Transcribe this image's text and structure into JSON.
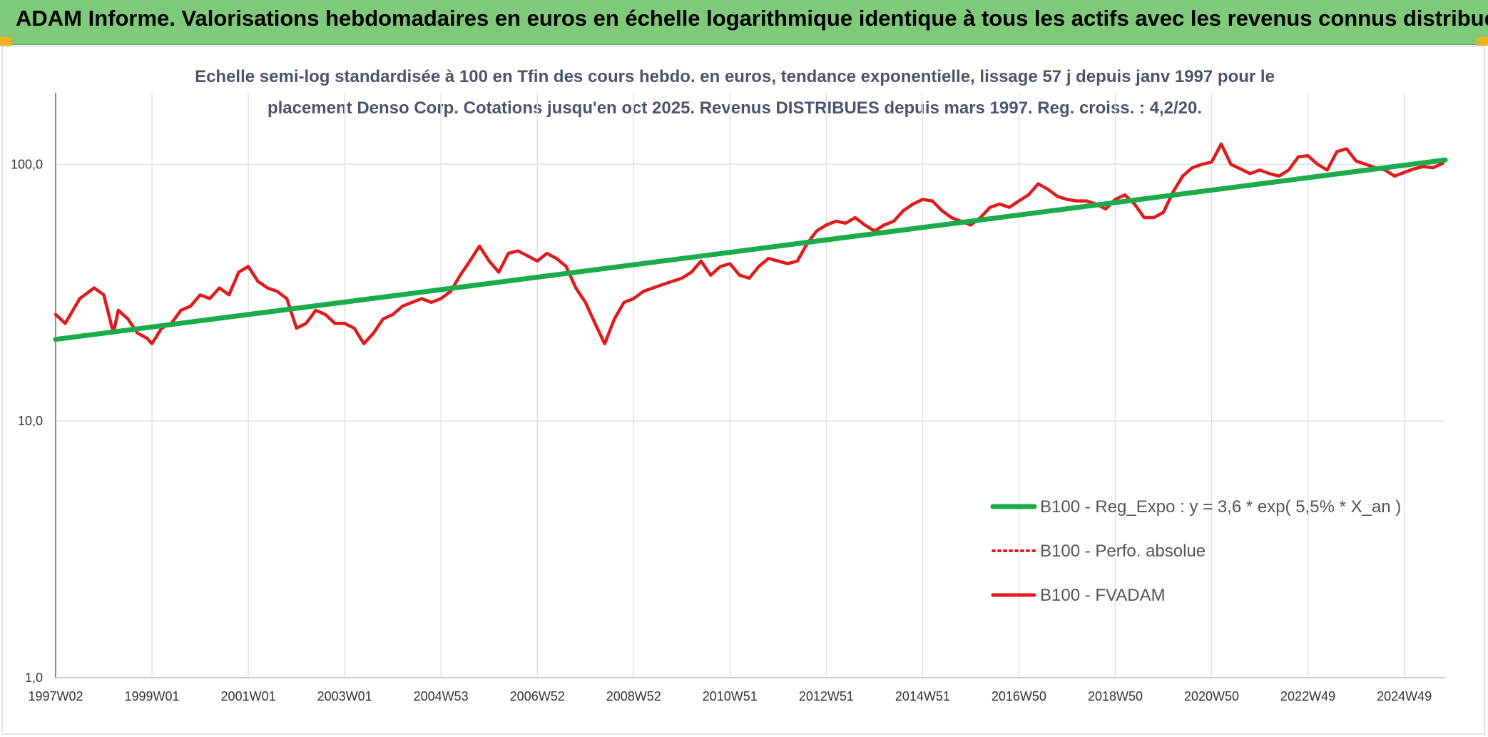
{
  "banner": {
    "title": "ADAM Informe. Valorisations hebdomadaires en euros en échelle logarithmique identique à tous les actifs avec les revenus connus distribués"
  },
  "colors": {
    "banner": "#7fc97a",
    "accent_corner": "#f2b21b",
    "trend": "#1aab4b",
    "perf": "#e01b1b",
    "grid": "#dde3ea",
    "title_text": "#4a5470"
  },
  "chart_data": {
    "type": "line",
    "title_line1": "Echelle semi-log standardisée à 100 en Tfin des cours hebdo. en euros, tendance exponentielle, lissage 57 j depuis janv 1997 pour le",
    "title_line2": "placement Denso Corp. Cotations jusqu'en oct 2025. Revenus DISTRIBUES depuis mars 1997. Reg. croiss. : 4,2/20.",
    "y_scale": "log",
    "ylim": [
      1,
      190
    ],
    "xlim": [
      1997.0,
      2025.85
    ],
    "grid": true,
    "legend_position": "right",
    "y_ticks": [
      {
        "value": 1,
        "label": "1,0"
      },
      {
        "value": 10,
        "label": "10,0"
      },
      {
        "value": 100,
        "label": "100,0"
      }
    ],
    "x_ticks": [
      {
        "value": 1997.0,
        "label": "1997W02"
      },
      {
        "value": 1999.0,
        "label": "1999W01"
      },
      {
        "value": 2001.0,
        "label": "2001W01"
      },
      {
        "value": 2003.0,
        "label": "2003W01"
      },
      {
        "value": 2005.0,
        "label": "2004W53"
      },
      {
        "value": 2007.0,
        "label": "2006W52"
      },
      {
        "value": 2009.0,
        "label": "2008W52"
      },
      {
        "value": 2011.0,
        "label": "2010W51"
      },
      {
        "value": 2013.0,
        "label": "2012W51"
      },
      {
        "value": 2015.0,
        "label": "2014W51"
      },
      {
        "value": 2017.0,
        "label": "2016W50"
      },
      {
        "value": 2019.0,
        "label": "2018W50"
      },
      {
        "value": 2021.0,
        "label": "2020W50"
      },
      {
        "value": 2023.0,
        "label": "2022W49"
      },
      {
        "value": 2025.0,
        "label": "2024W49"
      }
    ],
    "series": [
      {
        "name": "B100 - Reg_Expo : y = 3,6 * exp( 5,5% *  X_an )",
        "style": "solid-thick",
        "color": "#1aab4b",
        "x": [
          1997.0,
          2025.85
        ],
        "y": [
          20.8,
          104
        ]
      },
      {
        "name": "B100 - Perfo. absolue",
        "style": "dotted",
        "color": "#e01b1b",
        "x": [],
        "y": []
      },
      {
        "name": "B100 - FVADAM",
        "style": "solid",
        "color": "#e01b1b",
        "x": [
          1997.0,
          1997.2,
          1997.5,
          1997.8,
          1998.0,
          1998.2,
          1998.3,
          1998.5,
          1998.7,
          1998.9,
          1999.0,
          1999.2,
          1999.4,
          1999.6,
          1999.8,
          2000.0,
          2000.2,
          2000.4,
          2000.6,
          2000.8,
          2001.0,
          2001.2,
          2001.4,
          2001.6,
          2001.8,
          2002.0,
          2002.2,
          2002.4,
          2002.6,
          2002.8,
          2003.0,
          2003.2,
          2003.4,
          2003.6,
          2003.8,
          2004.0,
          2004.2,
          2004.4,
          2004.6,
          2004.8,
          2005.0,
          2005.2,
          2005.4,
          2005.6,
          2005.8,
          2006.0,
          2006.2,
          2006.4,
          2006.6,
          2006.8,
          2007.0,
          2007.2,
          2007.4,
          2007.6,
          2007.8,
          2008.0,
          2008.2,
          2008.4,
          2008.6,
          2008.8,
          2009.0,
          2009.2,
          2009.4,
          2009.6,
          2009.8,
          2010.0,
          2010.2,
          2010.4,
          2010.6,
          2010.8,
          2011.0,
          2011.2,
          2011.4,
          2011.6,
          2011.8,
          2012.0,
          2012.2,
          2012.4,
          2012.6,
          2012.8,
          2013.0,
          2013.2,
          2013.4,
          2013.6,
          2013.8,
          2014.0,
          2014.2,
          2014.4,
          2014.6,
          2014.8,
          2015.0,
          2015.2,
          2015.4,
          2015.6,
          2015.8,
          2016.0,
          2016.2,
          2016.4,
          2016.6,
          2016.8,
          2017.0,
          2017.2,
          2017.4,
          2017.6,
          2017.8,
          2018.0,
          2018.2,
          2018.4,
          2018.6,
          2018.8,
          2019.0,
          2019.2,
          2019.4,
          2019.6,
          2019.8,
          2020.0,
          2020.2,
          2020.4,
          2020.6,
          2020.8,
          2021.0,
          2021.2,
          2021.4,
          2021.6,
          2021.8,
          2022.0,
          2022.2,
          2022.4,
          2022.6,
          2022.8,
          2023.0,
          2023.2,
          2023.4,
          2023.6,
          2023.8,
          2024.0,
          2024.2,
          2024.4,
          2024.6,
          2024.8,
          2025.0,
          2025.2,
          2025.4,
          2025.6,
          2025.8
        ],
        "y": [
          26,
          24,
          30,
          33,
          31,
          22,
          27,
          25,
          22,
          21,
          20,
          23,
          24,
          27,
          28,
          31,
          30,
          33,
          31,
          38,
          40,
          35,
          33,
          32,
          30,
          23,
          24,
          27,
          26,
          24,
          24,
          23,
          20,
          22,
          25,
          26,
          28,
          29,
          30,
          29,
          30,
          32,
          37,
          42,
          48,
          42,
          38,
          45,
          46,
          44,
          42,
          45,
          43,
          40,
          33,
          29,
          24,
          20,
          25,
          29,
          30,
          32,
          33,
          34,
          35,
          36,
          38,
          42,
          37,
          40,
          41,
          37,
          36,
          40,
          43,
          42,
          41,
          42,
          49,
          55,
          58,
          60,
          59,
          62,
          58,
          55,
          58,
          60,
          66,
          70,
          73,
          72,
          66,
          62,
          60,
          58,
          62,
          68,
          70,
          68,
          72,
          76,
          84,
          80,
          75,
          73,
          72,
          72,
          70,
          67,
          73,
          76,
          70,
          62,
          62,
          65,
          78,
          90,
          97,
          100,
          102,
          120,
          100,
          96,
          92,
          95,
          92,
          90,
          95,
          107,
          108,
          100,
          95,
          112,
          115,
          103,
          100,
          97,
          95,
          90,
          93,
          96,
          98,
          97,
          101
        ]
      }
    ]
  }
}
